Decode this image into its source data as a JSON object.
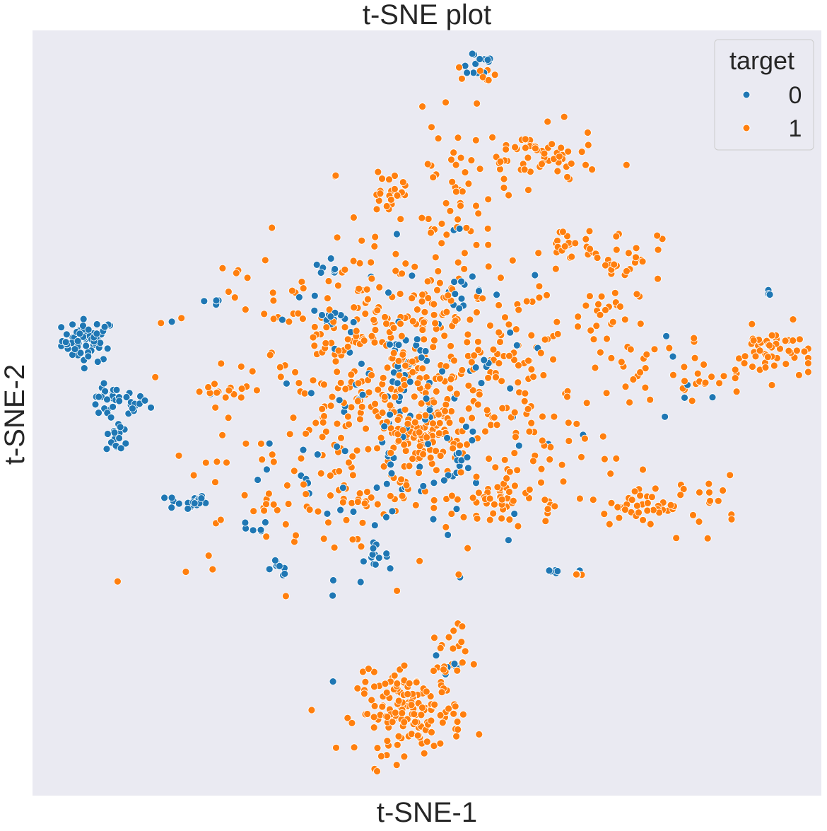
{
  "chart_data": {
    "type": "scatter",
    "title": "t-SNE plot",
    "xlabel": "t-SNE-1",
    "ylabel": "t-SNE-2",
    "xlim": [
      -60,
      60
    ],
    "ylim": [
      -58,
      58
    ],
    "grid": false,
    "axis_ticks": false,
    "background": "#eaeaf2",
    "legend": {
      "title": "target",
      "placement": "top-right",
      "entries": [
        "0",
        "1"
      ]
    },
    "colors": {
      "0": "#1f77b4",
      "1": "#ff7f0e"
    },
    "series": [
      {
        "name": "0",
        "clusters": [
          {
            "cx": -51.5,
            "cy": 11,
            "sx": 2.0,
            "sy": 1.6,
            "n": 60
          },
          {
            "cx": -47.5,
            "cy": 1.5,
            "sx": 2.6,
            "sy": 1.2,
            "n": 35
          },
          {
            "cx": -47,
            "cy": -3.5,
            "sx": 0.9,
            "sy": 1.3,
            "n": 16
          },
          {
            "cx": -36.5,
            "cy": -13.5,
            "sx": 1.5,
            "sy": 0.6,
            "n": 22
          },
          {
            "cx": 7.5,
            "cy": 53,
            "sx": 1.6,
            "sy": 1.3,
            "n": 14
          },
          {
            "cx": -4,
            "cy": 0,
            "sx": 10.0,
            "sy": 12.0,
            "n": 120
          },
          {
            "cx": -14.5,
            "cy": 14.5,
            "sx": 1.5,
            "sy": 0.8,
            "n": 16
          },
          {
            "cx": 5.5,
            "cy": 18.5,
            "sx": 1.5,
            "sy": 1.0,
            "n": 12
          },
          {
            "cx": -22.5,
            "cy": -23.5,
            "sx": 0.9,
            "sy": 0.6,
            "n": 8
          },
          {
            "cx": -8.5,
            "cy": -21.5,
            "sx": 1.3,
            "sy": 0.8,
            "n": 14
          },
          {
            "cx": -15,
            "cy": 20.5,
            "sx": 1.5,
            "sy": 1.5,
            "n": 8
          },
          {
            "cx": 5,
            "cy": -8,
            "sx": 1.2,
            "sy": 1.2,
            "n": 10
          },
          {
            "cx": 8.5,
            "cy": 7,
            "sx": 1.2,
            "sy": 1.0,
            "n": 6
          },
          {
            "cx": 3.5,
            "cy": -38,
            "sx": 1.5,
            "sy": 1.5,
            "n": 8
          },
          {
            "cx": 19,
            "cy": -24,
            "sx": 0.7,
            "sy": 0.4,
            "n": 6
          },
          {
            "cx": -32,
            "cy": 17,
            "sx": 0.9,
            "sy": 0.5,
            "n": 5
          },
          {
            "cx": 39.5,
            "cy": 5.5,
            "sx": 3.5,
            "sy": 6.0,
            "n": 6
          },
          {
            "cx": -3,
            "cy": 4,
            "sx": 3.0,
            "sy": 3.0,
            "n": 14
          },
          {
            "cx": 52,
            "cy": 18,
            "sx": 0.3,
            "sy": 0.3,
            "n": 3
          },
          {
            "cx": -26.5,
            "cy": -17.5,
            "sx": 1.2,
            "sy": 0.6,
            "n": 6
          }
        ]
      },
      {
        "name": "1",
        "clusters": [
          {
            "cx": -2,
            "cy": 3,
            "sx": 13.5,
            "sy": 10.5,
            "n": 560
          },
          {
            "cx": -1.5,
            "cy": -3,
            "sx": 2.6,
            "sy": 1.6,
            "n": 55
          },
          {
            "cx": -2.5,
            "cy": -45.5,
            "sx": 4.0,
            "sy": 3.0,
            "n": 150
          },
          {
            "cx": 3,
            "cy": -37,
            "sx": 1.5,
            "sy": 3.5,
            "n": 25
          },
          {
            "cx": 52.5,
            "cy": 9,
            "sx": 2.8,
            "sy": 2.0,
            "n": 50
          },
          {
            "cx": 35.5,
            "cy": -14,
            "sx": 6.5,
            "sy": 2.0,
            "n": 60
          },
          {
            "cx": 17,
            "cy": 38.5,
            "sx": 4.5,
            "sy": 2.2,
            "n": 55
          },
          {
            "cx": 4.5,
            "cy": 34,
            "sx": 3.5,
            "sy": 5.0,
            "n": 50
          },
          {
            "cx": -5.5,
            "cy": 33.5,
            "sx": 1.6,
            "sy": 1.8,
            "n": 22
          },
          {
            "cx": 8.5,
            "cy": 51.5,
            "sx": 1.2,
            "sy": 0.7,
            "n": 8
          },
          {
            "cx": 29.5,
            "cy": 24,
            "sx": 3.0,
            "sy": 2.0,
            "n": 30
          },
          {
            "cx": 21.5,
            "cy": 25.5,
            "sx": 2.2,
            "sy": 1.3,
            "n": 16
          },
          {
            "cx": 26,
            "cy": 15,
            "sx": 3.0,
            "sy": 2.5,
            "n": 24
          },
          {
            "cx": 10,
            "cy": -13,
            "sx": 3.0,
            "sy": 1.5,
            "n": 30
          },
          {
            "cx": 34,
            "cy": 4.5,
            "sx": 5.0,
            "sy": 3.0,
            "n": 26
          },
          {
            "cx": 43.5,
            "cy": 5,
            "sx": 1.8,
            "sy": 0.5,
            "n": 8
          },
          {
            "cx": -24.5,
            "cy": -14.5,
            "sx": 1.0,
            "sy": 0.7,
            "n": 6
          },
          {
            "cx": -31,
            "cy": 3,
            "sx": 2.0,
            "sy": 0.5,
            "n": 8
          },
          {
            "cx": -28.5,
            "cy": 21,
            "sx": 1.0,
            "sy": 0.6,
            "n": 4
          },
          {
            "cx": -10.5,
            "cy": -13,
            "sx": 2.0,
            "sy": 0.6,
            "n": 10
          },
          {
            "cx": 22.5,
            "cy": -24.5,
            "sx": 0.5,
            "sy": 0.3,
            "n": 4
          },
          {
            "cx": -4,
            "cy": 18,
            "sx": 8.0,
            "sy": 5.5,
            "n": 40
          },
          {
            "cx": -14.5,
            "cy": 36,
            "sx": 0.5,
            "sy": 0.3,
            "n": 2
          },
          {
            "cx": 7.5,
            "cy": 47,
            "sx": 0.2,
            "sy": 0.2,
            "n": 1
          },
          {
            "cx": -20.5,
            "cy": -13.5,
            "sx": 8.0,
            "sy": 8.0,
            "n": 25
          }
        ]
      }
    ]
  }
}
